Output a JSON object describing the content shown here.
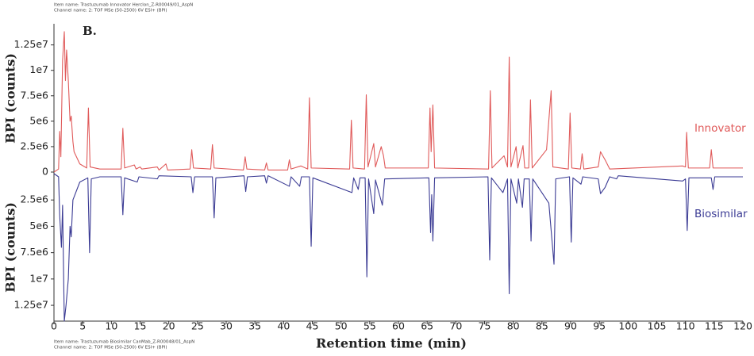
{
  "header": {
    "item_name": "Item name: Trastuzumab Innovator Herclon_Z-R00049/01_AspN",
    "channel_name": "Channel name: 2: TOF MSe (50-2500) 6V ESI+ (BPI)"
  },
  "footer": {
    "item_name": "Item name: Trastuzumab Biosimilar CanMab_Z-R00048/01_AspN",
    "channel_name": "Channel name: 2: TOF MSe (50-2500) 6V ESI+ (BPI)"
  },
  "chart_data": {
    "type": "line",
    "panel_label": "B.",
    "x_label": "Retention time (min)",
    "y_label": "BPI (counts)",
    "y2_label": "BPI (counts)",
    "xlim": [
      0,
      120
    ],
    "xticks": [
      0,
      5,
      10,
      15,
      20,
      25,
      30,
      35,
      40,
      45,
      50,
      55,
      60,
      65,
      70,
      75,
      80,
      85,
      90,
      95,
      100,
      105,
      110,
      115,
      120
    ],
    "ylim": [
      0,
      14500000
    ],
    "yticks": [
      0,
      {
        "value": 2500000,
        "label": "2.5e6"
      },
      {
        "value": 5000000,
        "label": "5e6"
      },
      {
        "value": 7500000,
        "label": "7.5e6"
      },
      {
        "value": 10000000,
        "label": "1e7"
      },
      {
        "value": 12500000,
        "label": "1.25e7"
      }
    ],
    "y2lim": [
      0,
      14000000
    ],
    "y2_inverted": true,
    "y2ticks": [
      {
        "value": 2500000,
        "label": "2.5e6"
      },
      {
        "value": 5000000,
        "label": "5e6"
      },
      {
        "value": 7500000,
        "label": "7.5e6"
      },
      {
        "value": 10000000,
        "label": "1e7"
      },
      {
        "value": 12500000,
        "label": "1.25e7"
      }
    ],
    "series": [
      {
        "name": "Innovator",
        "color": "#e05a5a",
        "x": [
          0,
          0.8,
          1.0,
          1.2,
          1.5,
          1.8,
          2.0,
          2.2,
          2.5,
          2.8,
          3.0,
          3.3,
          3.5,
          4.5,
          5.7,
          6.0,
          6.3,
          8,
          11.7,
          12.0,
          12.3,
          14,
          14.3,
          15,
          15.3,
          18,
          18.3,
          19.5,
          19.8,
          23.7,
          24.0,
          24.3,
          27.3,
          27.6,
          27.9,
          33.0,
          33.3,
          33.6,
          36.7,
          37.0,
          37.3,
          40.7,
          41.0,
          41.3,
          43.0,
          44.2,
          44.5,
          44.8,
          51.5,
          51.8,
          52.1,
          54.1,
          54.4,
          54.7,
          55.7,
          56.0,
          57.0,
          57.4,
          57.7,
          65.2,
          65.5,
          65.7,
          66.0,
          66.3,
          75.7,
          76.0,
          76.3,
          78.4,
          79.0,
          79.3,
          79.6,
          80.5,
          80.8,
          81.7,
          82.0,
          82.7,
          83.0,
          83.3,
          85.8,
          86.6,
          86.9,
          89.6,
          89.9,
          90.2,
          91.7,
          92.0,
          92.3,
          94.8,
          95.2,
          96.0,
          96.8,
          109.5,
          110.0,
          110.2,
          110.5,
          114.2,
          114.5,
          114.8,
          120
        ],
        "values": [
          0,
          300000,
          4000000,
          1500000,
          11000000,
          13800000,
          9000000,
          12000000,
          9000000,
          5000000,
          5500000,
          3000000,
          2000000,
          800000,
          400000,
          6300000,
          500000,
          300000,
          300000,
          4300000,
          400000,
          700000,
          300000,
          500000,
          300000,
          500000,
          200000,
          800000,
          200000,
          300000,
          2200000,
          400000,
          300000,
          2700000,
          400000,
          200000,
          1500000,
          300000,
          200000,
          900000,
          200000,
          200000,
          1200000,
          300000,
          600000,
          300000,
          7300000,
          400000,
          300000,
          5100000,
          400000,
          300000,
          7600000,
          500000,
          2800000,
          500000,
          2500000,
          1600000,
          400000,
          400000,
          6300000,
          2000000,
          6600000,
          400000,
          300000,
          8000000,
          400000,
          1600000,
          500000,
          11300000,
          500000,
          2500000,
          400000,
          2600000,
          400000,
          400000,
          7100000,
          400000,
          2200000,
          8000000,
          500000,
          300000,
          5800000,
          400000,
          300000,
          1800000,
          300000,
          500000,
          2000000,
          1200000,
          300000,
          600000,
          500000,
          3900000,
          400000,
          400000,
          2200000,
          400000,
          400000
        ]
      },
      {
        "name": "Biosimilar",
        "color": "#3b3b94",
        "axis": "y2",
        "x": [
          0,
          0.8,
          1.0,
          1.3,
          1.5,
          1.8,
          2.1,
          2.5,
          2.8,
          3.0,
          3.3,
          4.5,
          5.9,
          6.2,
          6.5,
          8,
          11.7,
          12.0,
          12.3,
          14.5,
          14.8,
          18,
          18.3,
          23.9,
          24.2,
          24.5,
          27.6,
          27.9,
          28.2,
          33.1,
          33.4,
          33.7,
          36.7,
          37.0,
          37.3,
          41.0,
          41.3,
          42.8,
          43.1,
          44.5,
          44.8,
          45.1,
          51.9,
          52.2,
          53.0,
          53.3,
          54.2,
          54.5,
          54.8,
          55.7,
          56.0,
          57.2,
          57.6,
          65.3,
          65.6,
          65.8,
          66.0,
          66.3,
          75.6,
          75.9,
          76.2,
          78.2,
          79.0,
          79.3,
          79.6,
          80.6,
          80.9,
          81.6,
          81.9,
          82.8,
          83.1,
          83.4,
          86.2,
          87.1,
          87.4,
          89.8,
          90.1,
          90.4,
          91.8,
          92.1,
          94.8,
          95.2,
          96.0,
          96.8,
          98.0,
          98.3,
          109.5,
          110.0,
          110.3,
          110.6,
          114.5,
          114.8,
          115.1,
          120
        ],
        "values": [
          0,
          300000,
          4000000,
          7000000,
          3000000,
          14000000,
          12500000,
          10000000,
          5000000,
          6000000,
          2500000,
          800000,
          400000,
          7500000,
          500000,
          300000,
          300000,
          3900000,
          400000,
          800000,
          300000,
          500000,
          200000,
          300000,
          1800000,
          300000,
          300000,
          4200000,
          400000,
          200000,
          1700000,
          300000,
          200000,
          900000,
          200000,
          1200000,
          300000,
          1200000,
          300000,
          300000,
          6900000,
          400000,
          1800000,
          400000,
          1500000,
          400000,
          400000,
          9800000,
          500000,
          3800000,
          600000,
          3000000,
          500000,
          400000,
          5600000,
          2000000,
          6400000,
          400000,
          300000,
          8200000,
          400000,
          1800000,
          500000,
          11400000,
          500000,
          2800000,
          500000,
          3200000,
          500000,
          500000,
          6400000,
          500000,
          2800000,
          8600000,
          500000,
          300000,
          6500000,
          400000,
          1000000,
          300000,
          500000,
          1900000,
          1300000,
          300000,
          500000,
          200000,
          700000,
          500000,
          5400000,
          400000,
          400000,
          1500000,
          300000,
          300000
        ]
      }
    ]
  }
}
